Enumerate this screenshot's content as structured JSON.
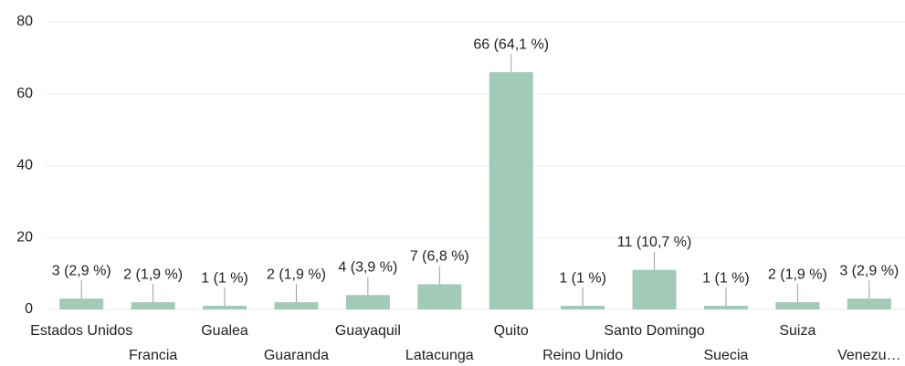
{
  "chart_data": {
    "type": "bar",
    "categories": [
      "Estados Unidos",
      "Francia",
      "Gualea",
      "Guaranda",
      "Guayaquil",
      "Latacunga",
      "Quito",
      "Reino Unido",
      "Santo Domingo",
      "Suecia",
      "Suiza",
      "Venezu…"
    ],
    "values": [
      3,
      2,
      1,
      2,
      4,
      7,
      66,
      1,
      11,
      1,
      2,
      3
    ],
    "value_labels": [
      "3 (2,9 %)",
      "2 (1,9 %)",
      "1 (1 %)",
      "2 (1,9 %)",
      "4 (3,9 %)",
      "7 (6,8 %)",
      "66 (64,1 %)",
      "1 (1 %)",
      "11 (10,7 %)",
      "1 (1 %)",
      "2 (1,9 %)",
      "3 (2,9 %)"
    ],
    "color": "#a1cab7",
    "ylim": [
      0,
      80
    ],
    "yticks": [
      0,
      20,
      40,
      60,
      80
    ],
    "grid": true
  }
}
